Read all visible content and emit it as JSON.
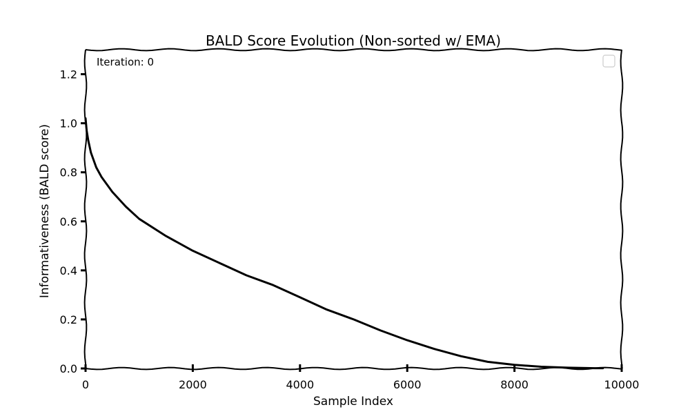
{
  "chart_data": {
    "type": "line",
    "title": "BALD Score Evolution (Non-sorted w/ EMA)",
    "xlabel": "Sample Index",
    "ylabel": "Informativeness (BALD score)",
    "xlim": [
      0,
      10000
    ],
    "ylim": [
      0.0,
      1.3
    ],
    "xticks": [
      0,
      2000,
      4000,
      6000,
      8000,
      10000
    ],
    "xtick_labels": [
      "0",
      "2000",
      "4000",
      "6000",
      "8000",
      "10000"
    ],
    "yticks": [
      0.0,
      0.2,
      0.4,
      0.6,
      0.8,
      1.0,
      1.2
    ],
    "ytick_labels": [
      "0.0",
      "0.2",
      "0.4",
      "0.6",
      "0.8",
      "1.0",
      "1.2"
    ],
    "grid": false,
    "legend_position": "top-right",
    "annotation": "Iteration: 0",
    "series": [
      {
        "x": [
          0,
          20,
          50,
          100,
          200,
          300,
          500,
          750,
          1000,
          1500,
          2000,
          2500,
          3000,
          3500,
          4000,
          4500,
          5000,
          5500,
          6000,
          6500,
          7000,
          7500,
          8000,
          8500,
          9000,
          9500,
          9650
        ],
        "y": [
          1.02,
          0.97,
          0.93,
          0.88,
          0.82,
          0.78,
          0.72,
          0.66,
          0.61,
          0.54,
          0.48,
          0.43,
          0.38,
          0.34,
          0.29,
          0.24,
          0.2,
          0.155,
          0.115,
          0.08,
          0.05,
          0.027,
          0.015,
          0.007,
          0.003,
          0.001,
          0.001
        ]
      }
    ]
  }
}
